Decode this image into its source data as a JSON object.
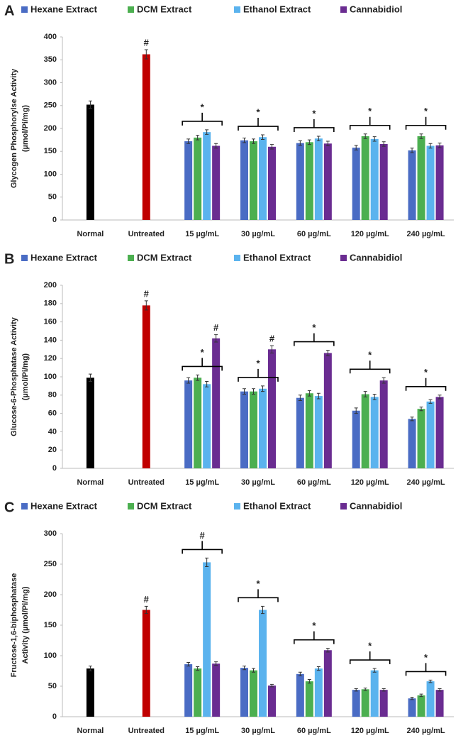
{
  "chart_data": [
    {
      "type": "bar",
      "panel_label": "A",
      "ylabel": [
        "Glycogen Phosphorylse  Activity",
        "(µmol/Pi/mg)"
      ],
      "categories": [
        "Normal",
        "Untreated",
        "15 µg/mL",
        "30 µg/mL",
        "60 µg/mL",
        "120 µg/mL",
        "240 µg/mL"
      ],
      "control_values": [
        252,
        362
      ],
      "control_errors": [
        8,
        10
      ],
      "control_colors": [
        "#000000",
        "#c00000"
      ],
      "series": [
        {
          "name": "Hexane Extract",
          "color": "#4a6cc4",
          "values": [
            null,
            null,
            172,
            174,
            168,
            158,
            152
          ],
          "errors": [
            null,
            null,
            5,
            5,
            5,
            5,
            5
          ]
        },
        {
          "name": "DCM Extract",
          "color": "#4caf50",
          "values": [
            null,
            null,
            180,
            172,
            170,
            183,
            183
          ],
          "errors": [
            null,
            null,
            5,
            5,
            5,
            5,
            5
          ]
        },
        {
          "name": "Ethanol Extract",
          "color": "#5bb3ee",
          "values": [
            null,
            null,
            192,
            181,
            178,
            177,
            162
          ],
          "errors": [
            null,
            null,
            5,
            5,
            5,
            5,
            5
          ]
        },
        {
          "name": "Cannabidiol",
          "color": "#6a2c91",
          "values": [
            null,
            null,
            162,
            160,
            167,
            166,
            163
          ],
          "errors": [
            null,
            null,
            5,
            5,
            5,
            5,
            5
          ]
        }
      ],
      "group_marks": [
        "*",
        "*",
        "*",
        "*",
        "*"
      ],
      "bar_marks": [
        {
          "category": 1,
          "text": "#"
        }
      ],
      "ylim": [
        0,
        400
      ],
      "yticks": [
        0,
        50,
        100,
        150,
        200,
        250,
        300,
        350,
        400
      ]
    },
    {
      "type": "bar",
      "panel_label": "B",
      "ylabel": [
        "Glucose-6-Phosphatase  Activity",
        "(µmol/Pi/mg)"
      ],
      "categories": [
        "Normal",
        "Untreated",
        "15 µg/mL",
        "30 µg/mL",
        "60 µg/mL",
        "120 µg/mL",
        "240 µg/mL"
      ],
      "control_values": [
        99,
        178
      ],
      "control_errors": [
        4,
        5
      ],
      "control_colors": [
        "#000000",
        "#c00000"
      ],
      "series": [
        {
          "name": "Hexane Extract",
          "color": "#4a6cc4",
          "values": [
            null,
            null,
            96,
            84,
            77,
            63,
            54
          ],
          "errors": [
            null,
            null,
            3,
            3,
            3,
            3,
            2
          ]
        },
        {
          "name": "DCM Extract",
          "color": "#4caf50",
          "values": [
            null,
            null,
            99,
            84,
            82,
            81,
            65
          ],
          "errors": [
            null,
            null,
            3,
            3,
            3,
            3,
            2
          ]
        },
        {
          "name": "Ethanol Extract",
          "color": "#5bb3ee",
          "values": [
            null,
            null,
            92,
            87,
            79,
            78,
            73
          ],
          "errors": [
            null,
            null,
            3,
            3,
            3,
            3,
            2
          ]
        },
        {
          "name": "Cannabidiol",
          "color": "#6a2c91",
          "values": [
            null,
            null,
            142,
            130,
            126,
            96,
            78
          ],
          "errors": [
            null,
            null,
            4,
            4,
            3,
            3,
            2
          ]
        }
      ],
      "group_marks": [
        "*",
        "*",
        "*",
        "*",
        "*"
      ],
      "bar_marks": [
        {
          "category": 1,
          "text": "#"
        },
        {
          "series": 3,
          "category": 2,
          "text": "#"
        },
        {
          "series": 3,
          "category": 3,
          "text": "#"
        }
      ],
      "ylim": [
        0,
        200
      ],
      "yticks": [
        0,
        20,
        40,
        60,
        80,
        100,
        120,
        140,
        160,
        180,
        200
      ]
    },
    {
      "type": "bar",
      "panel_label": "C",
      "ylabel": [
        "Fructose-1,6-biphosphatase",
        "Activity (µmol/Pi/mg)"
      ],
      "categories": [
        "Normal",
        "Untreated",
        "15 µg/mL",
        "30 µg/mL",
        "60 µg/mL",
        "120 µg/mL",
        "240 µg/mL"
      ],
      "control_values": [
        79,
        175
      ],
      "control_errors": [
        4,
        6
      ],
      "control_colors": [
        "#000000",
        "#c00000"
      ],
      "series": [
        {
          "name": "Hexane Extract",
          "color": "#4a6cc4",
          "values": [
            null,
            null,
            86,
            80,
            70,
            44,
            30
          ],
          "errors": [
            null,
            null,
            3,
            3,
            3,
            2,
            2
          ]
        },
        {
          "name": "DCM Extract",
          "color": "#4caf50",
          "values": [
            null,
            null,
            79,
            76,
            58,
            45,
            35
          ],
          "errors": [
            null,
            null,
            3,
            3,
            3,
            2,
            2
          ]
        },
        {
          "name": "Ethanol Extract",
          "color": "#5bb3ee",
          "values": [
            null,
            null,
            253,
            175,
            79,
            76,
            58
          ],
          "errors": [
            null,
            null,
            7,
            6,
            3,
            3,
            2
          ]
        },
        {
          "name": "Cannabidiol",
          "color": "#6a2c91",
          "values": [
            null,
            null,
            87,
            51,
            109,
            44,
            44
          ],
          "errors": [
            null,
            null,
            3,
            2,
            3,
            2,
            2
          ]
        }
      ],
      "group_marks": [
        "#",
        "*",
        "*",
        "*",
        "*"
      ],
      "bar_marks": [
        {
          "category": 1,
          "text": "#"
        }
      ],
      "ylim": [
        0,
        300
      ],
      "yticks": [
        0,
        50,
        100,
        150,
        200,
        250,
        300
      ]
    }
  ]
}
